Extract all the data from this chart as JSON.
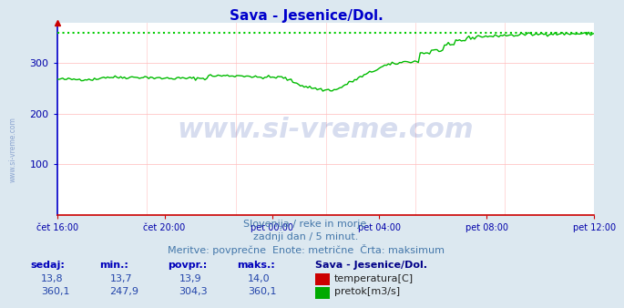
{
  "title": "Sava - Jesenice/Dol.",
  "title_color": "#0000cc",
  "bg_color": "#dce8f0",
  "plot_bg_color": "#ffffff",
  "grid_color": "#ffbbbb",
  "grid_color_v": "#ffcccc",
  "left_spine_color": "#0000cc",
  "bottom_spine_color": "#cc0000",
  "tick_color": "#0000aa",
  "watermark_text": "www.si-vreme.com",
  "watermark_color": "#2244aa",
  "watermark_alpha": 0.18,
  "side_watermark_color": "#5577bb",
  "side_watermark_alpha": 0.6,
  "subtitle1": "Slovenija / reke in morje.",
  "subtitle2": "zadnji dan / 5 minut.",
  "subtitle3": "Meritve: povprečne  Enote: metrične  Črta: maksimum",
  "subtitle_color": "#4477aa",
  "legend_title": "Sava - Jesenice/Dol.",
  "legend_title_color": "#000088",
  "stats_headers": [
    "sedaj:",
    "min.:",
    "povpr.:",
    "maks.:"
  ],
  "stats_header_color": "#0000bb",
  "stats_temp": [
    "13,8",
    "13,7",
    "13,9",
    "14,0"
  ],
  "stats_pretok": [
    "360,1",
    "247,9",
    "304,3",
    "360,1"
  ],
  "stats_color": "#2244aa",
  "legend_items": [
    {
      "label": "temperatura[C]",
      "color": "#cc0000"
    },
    {
      "label": "pretok[m3/s]",
      "color": "#00aa00"
    }
  ],
  "temp_line_color": "#cc0000",
  "pretok_line_color": "#00bb00",
  "max_line_color": "#00cc00",
  "ylim": [
    0,
    380
  ],
  "yticks": [
    100,
    200,
    300
  ],
  "xtick_labels": [
    "čet 16:00",
    "čet 20:00",
    "pet 00:00",
    "pet 04:00",
    "pet 08:00",
    "pet 12:00"
  ],
  "n_points": 288,
  "pretok_max": 360.1,
  "pretok_min": 247.9
}
